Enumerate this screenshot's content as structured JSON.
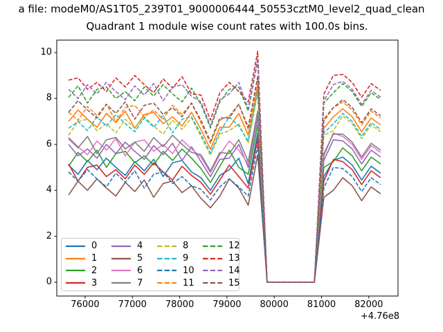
{
  "chart_data": {
    "type": "line",
    "suptitle_truncated": "a file: modeM0/AS1T05_239T01_9000006444_50553cztM0_level2_quad_clean",
    "title": "Quadrant 1 module wise count rates with 100.0s bins.",
    "xlabel": "",
    "ylabel": "",
    "x_axis_offset": "+4.76e8",
    "grid": false,
    "legend_position": "lower left",
    "legend_columns": 4,
    "xlim": [
      75400,
      82618
    ],
    "ylim": [
      -0.6,
      10.54
    ],
    "xticks": [
      76000,
      77000,
      78000,
      79000,
      80000,
      81000,
      82000
    ],
    "yticks": [
      0,
      2,
      4,
      6,
      8,
      10
    ],
    "x": [
      75650,
      75850,
      76050,
      76250,
      76450,
      76650,
      76850,
      77050,
      77250,
      77450,
      77650,
      77850,
      78050,
      78250,
      78450,
      78650,
      78850,
      79050,
      79250,
      79450,
      79650,
      79850,
      80050,
      80250,
      80450,
      80650,
      80850,
      81050,
      81250,
      81450,
      81650,
      81850,
      82050,
      82250
    ],
    "series": [
      {
        "name": "0",
        "color": "#1f77b4",
        "dash": false,
        "values": [
          5.1,
          4.7,
          5.3,
          4.9,
          5.4,
          5.0,
          4.65,
          5.25,
          4.85,
          5.35,
          4.6,
          5.2,
          5.3,
          4.8,
          4.55,
          4.0,
          4.65,
          4.9,
          5.4,
          4.3,
          6.5,
          0,
          0,
          0,
          0,
          0,
          0,
          4.6,
          5.3,
          5.45,
          5.1,
          4.45,
          5.05,
          4.75
        ]
      },
      {
        "name": "1",
        "color": "#ff7f0e",
        "dash": false,
        "values": [
          7.0,
          7.5,
          7.1,
          6.75,
          7.35,
          6.95,
          7.45,
          6.7,
          7.3,
          7.4,
          6.9,
          7.2,
          6.8,
          7.4,
          6.65,
          5.79,
          6.75,
          6.75,
          7.35,
          6.4,
          8.55,
          0,
          0,
          0,
          0,
          0,
          0,
          6.7,
          7.2,
          7.55,
          7.2,
          6.55,
          7.15,
          6.85
        ]
      },
      {
        "name": "2",
        "color": "#2ca02c",
        "dash": false,
        "values": [
          5.05,
          5.65,
          5.25,
          5.75,
          5.0,
          5.6,
          5.7,
          5.2,
          5.5,
          5.1,
          5.7,
          5.3,
          5.8,
          5.4,
          4.95,
          4.34,
          5.05,
          5.75,
          5.0,
          4.7,
          6.85,
          0,
          0,
          0,
          0,
          0,
          0,
          5.0,
          5.25,
          5.85,
          5.5,
          4.85,
          5.45,
          5.15
        ]
      },
      {
        "name": "3",
        "color": "#d62728",
        "dash": false,
        "values": [
          5.15,
          4.4,
          5.0,
          5.1,
          4.6,
          4.9,
          4.5,
          5.1,
          4.7,
          5.2,
          4.8,
          4.45,
          5.05,
          4.65,
          4.35,
          3.83,
          4.45,
          5.1,
          4.6,
          4.1,
          6.25,
          0,
          0,
          0,
          0,
          0,
          0,
          4.4,
          5.35,
          5.25,
          4.9,
          4.25,
          4.85,
          4.55
        ]
      },
      {
        "name": "4",
        "color": "#9467bd",
        "dash": false,
        "values": [
          6.0,
          5.5,
          5.8,
          5.4,
          6.0,
          5.6,
          6.1,
          5.7,
          5.35,
          5.95,
          5.55,
          6.05,
          5.3,
          5.9,
          5.25,
          4.6,
          5.35,
          5.4,
          6.0,
          5.0,
          7.15,
          0,
          0,
          0,
          0,
          0,
          0,
          5.3,
          6.2,
          6.15,
          5.8,
          5.15,
          5.75,
          5.45
        ]
      },
      {
        "name": "5",
        "color": "#8c564b",
        "dash": false,
        "values": [
          3.8,
          4.4,
          4.0,
          4.5,
          4.1,
          3.75,
          4.35,
          3.95,
          4.45,
          3.7,
          4.3,
          4.4,
          3.9,
          4.2,
          3.65,
          3.24,
          3.75,
          4.5,
          4.1,
          3.35,
          5.55,
          0,
          0,
          0,
          0,
          0,
          0,
          3.7,
          4.0,
          4.55,
          4.2,
          3.55,
          4.15,
          3.85
        ]
      },
      {
        "name": "6",
        "color": "#e377c2",
        "dash": false,
        "values": [
          6.3,
          5.9,
          5.55,
          6.15,
          5.75,
          6.25,
          5.5,
          6.1,
          6.2,
          5.7,
          6.0,
          5.6,
          6.2,
          5.8,
          5.45,
          4.77,
          5.55,
          6.15,
          5.75,
          5.15,
          7.35,
          0,
          0,
          0,
          0,
          0,
          0,
          5.5,
          6.5,
          6.35,
          6.0,
          5.35,
          5.95,
          5.65
        ]
      },
      {
        "name": "7",
        "color": "#7f7f7f",
        "dash": false,
        "values": [
          6.25,
          5.85,
          6.35,
          5.6,
          6.2,
          6.3,
          5.8,
          6.1,
          5.7,
          6.3,
          5.9,
          6.4,
          6.0,
          5.65,
          5.55,
          4.85,
          5.65,
          5.6,
          6.2,
          5.25,
          7.45,
          0,
          0,
          0,
          0,
          0,
          0,
          5.6,
          6.45,
          6.45,
          6.1,
          5.45,
          6.05,
          5.75
        ]
      },
      {
        "name": "8",
        "color": "#bcbd22",
        "dash": true,
        "values": [
          6.4,
          7.0,
          7.1,
          6.6,
          6.9,
          6.5,
          7.1,
          6.7,
          7.2,
          6.8,
          6.45,
          7.05,
          6.65,
          7.15,
          6.35,
          5.53,
          6.45,
          6.6,
          6.9,
          6.05,
          8.25,
          0,
          0,
          0,
          0,
          0,
          0,
          6.4,
          6.6,
          7.25,
          6.9,
          6.25,
          6.85,
          6.55
        ]
      },
      {
        "name": "9",
        "color": "#17becf",
        "dash": true,
        "values": [
          6.7,
          7.0,
          6.6,
          7.2,
          6.8,
          7.3,
          6.9,
          6.55,
          7.15,
          6.75,
          7.25,
          6.5,
          7.1,
          7.2,
          6.45,
          5.62,
          6.55,
          7.2,
          6.8,
          6.15,
          8.35,
          0,
          0,
          0,
          0,
          0,
          0,
          6.5,
          6.9,
          7.35,
          7.0,
          6.35,
          6.95,
          6.65
        ]
      },
      {
        "name": "10",
        "color": "#1f77b4",
        "dash": true,
        "values": [
          4.8,
          4.4,
          4.9,
          4.5,
          4.15,
          4.75,
          4.35,
          4.85,
          4.1,
          4.7,
          4.8,
          4.3,
          4.6,
          4.2,
          4.05,
          3.58,
          4.15,
          4.5,
          4.15,
          3.75,
          5.95,
          0,
          0,
          0,
          0,
          0,
          0,
          4.1,
          5.0,
          4.95,
          4.6,
          3.95,
          4.55,
          4.25
        ]
      },
      {
        "name": "11",
        "color": "#ff7f0e",
        "dash": true,
        "values": [
          7.4,
          7.05,
          7.65,
          7.25,
          7.75,
          7.0,
          7.6,
          7.7,
          7.2,
          7.5,
          7.1,
          7.7,
          7.3,
          7.8,
          6.95,
          6.04,
          7.05,
          7.25,
          7.75,
          6.65,
          8.85,
          0,
          0,
          0,
          0,
          0,
          0,
          7.0,
          7.6,
          7.85,
          7.5,
          6.85,
          7.45,
          7.15
        ]
      },
      {
        "name": "12",
        "color": "#2ca02c",
        "dash": true,
        "values": [
          8.05,
          8.55,
          7.8,
          8.4,
          8.5,
          8.0,
          8.3,
          7.9,
          8.5,
          8.1,
          8.6,
          8.2,
          7.85,
          8.45,
          7.75,
          6.72,
          7.85,
          8.4,
          8.5,
          7.45,
          9.65,
          0,
          0,
          0,
          0,
          0,
          0,
          7.8,
          8.25,
          8.65,
          8.3,
          7.65,
          8.25,
          7.95
        ]
      },
      {
        "name": "13",
        "color": "#d62728",
        "dash": true,
        "values": [
          8.8,
          8.9,
          8.4,
          8.7,
          8.3,
          8.9,
          8.5,
          9.0,
          8.6,
          8.25,
          8.85,
          8.45,
          8.95,
          8.2,
          8.15,
          7.06,
          8.25,
          8.7,
          8.3,
          7.85,
          10.05,
          0,
          0,
          0,
          0,
          0,
          0,
          8.2,
          9.0,
          9.05,
          8.7,
          8.05,
          8.65,
          8.35
        ]
      },
      {
        "name": "14",
        "color": "#9467bd",
        "dash": true,
        "values": [
          8.4,
          8.0,
          8.6,
          8.2,
          8.7,
          8.3,
          7.95,
          8.55,
          8.15,
          8.65,
          7.9,
          8.5,
          8.6,
          8.1,
          7.85,
          6.81,
          7.95,
          8.2,
          8.7,
          7.55,
          9.75,
          0,
          0,
          0,
          0,
          0,
          0,
          7.9,
          8.6,
          8.75,
          8.4,
          7.75,
          8.35,
          8.05
        ]
      },
      {
        "name": "15",
        "color": "#8c564b",
        "dash": true,
        "values": [
          7.4,
          7.9,
          7.5,
          7.15,
          7.75,
          7.35,
          7.85,
          7.1,
          7.7,
          7.8,
          7.3,
          7.6,
          7.2,
          7.8,
          7.05,
          6.13,
          7.15,
          7.15,
          7.75,
          6.75,
          8.95,
          0,
          0,
          0,
          0,
          0,
          0,
          7.1,
          7.6,
          7.95,
          7.6,
          6.95,
          7.55,
          7.25
        ]
      }
    ]
  }
}
